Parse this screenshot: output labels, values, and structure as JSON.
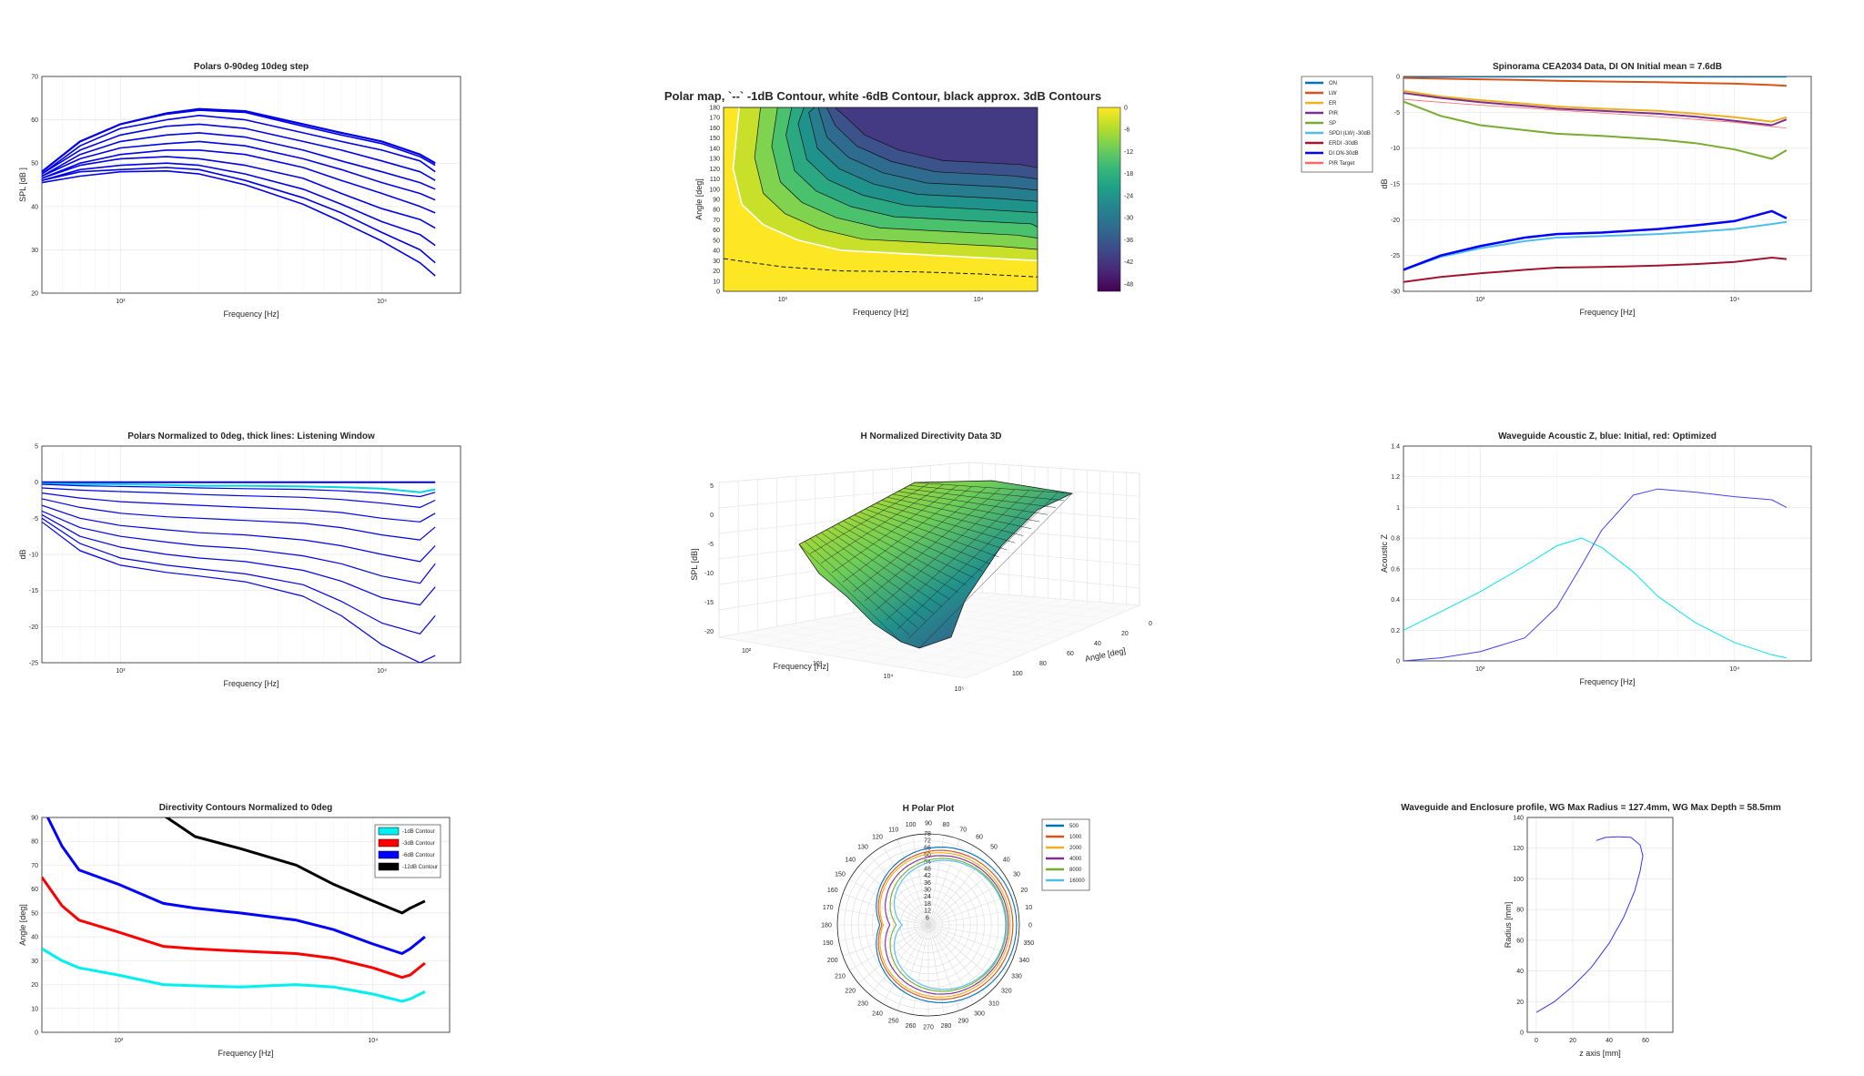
{
  "chart_data": [
    {
      "id": "polars",
      "type": "line",
      "title": "Polars 0-90deg 10deg step",
      "xlabel": "Frequency [Hz]",
      "ylabel": "SPL [dB ]",
      "xscale": "log",
      "xlim": [
        500,
        20000
      ],
      "ylim": [
        20,
        70
      ],
      "yticks": [
        20,
        30,
        40,
        50,
        60,
        70
      ],
      "xticks": [
        {
          "v": 1000,
          "label": "10³"
        },
        {
          "v": 10000,
          "label": "10⁴"
        }
      ],
      "grid": true,
      "color": "#0000e6",
      "x": [
        500,
        700,
        1000,
        1500,
        2000,
        3000,
        5000,
        7000,
        10000,
        14000,
        16000
      ],
      "series": [
        {
          "values": [
            48,
            55,
            59,
            61.5,
            62.5,
            62,
            59,
            57,
            55,
            52,
            50
          ]
        },
        {
          "values": [
            48,
            55,
            59,
            61.3,
            62.2,
            61.7,
            58.5,
            56.5,
            54.5,
            51.5,
            49.5
          ]
        },
        {
          "values": [
            47.5,
            54,
            58,
            60,
            61,
            60,
            57,
            55,
            53,
            50.5,
            48
          ]
        },
        {
          "values": [
            47.5,
            53,
            56.5,
            58.5,
            59,
            58,
            55,
            53,
            50.5,
            48,
            46
          ]
        },
        {
          "values": [
            47,
            52,
            55,
            56.5,
            57,
            56,
            53,
            50.5,
            48,
            45.5,
            44
          ]
        },
        {
          "values": [
            47,
            51,
            53.5,
            54.5,
            55,
            54,
            51,
            48.5,
            45.5,
            43,
            41.5
          ]
        },
        {
          "values": [
            46.5,
            50,
            52,
            53,
            53,
            52,
            49,
            46,
            43,
            40,
            38.5
          ]
        },
        {
          "values": [
            46.5,
            49.5,
            51,
            51.5,
            51,
            49.5,
            46.5,
            43,
            39.5,
            37,
            35
          ]
        },
        {
          "values": [
            46,
            48.5,
            49.5,
            50,
            49.5,
            47.5,
            44,
            40.5,
            36.5,
            33.5,
            31
          ]
        },
        {
          "values": [
            46,
            48,
            48.5,
            49,
            48.5,
            46,
            42,
            38.5,
            34,
            30,
            27
          ]
        },
        {
          "values": [
            45.5,
            47,
            48,
            48.2,
            47.5,
            45,
            40.5,
            36.5,
            32,
            27,
            24
          ]
        }
      ]
    },
    {
      "id": "polarmap",
      "type": "heatmap",
      "title": "Polar map, `--` -1dB Contour, white -6dB Contour, black approx. 3dB Contours",
      "xlabel": "Frequency [Hz]",
      "ylabel": "Angle [deg]",
      "xscale": "log",
      "xlim": [
        500,
        20000
      ],
      "ylim": [
        0,
        180
      ],
      "yticks": [
        0,
        10,
        20,
        30,
        40,
        50,
        60,
        70,
        80,
        90,
        100,
        110,
        120,
        130,
        140,
        150,
        160,
        170,
        180
      ],
      "xticks": [
        {
          "v": 1000,
          "label": "10³"
        },
        {
          "v": 10000,
          "label": "10⁴"
        }
      ],
      "colorbar": {
        "ticks": [
          0,
          -6,
          -12,
          -18,
          -24,
          -30,
          -36,
          -42,
          -48
        ],
        "range": [
          -50,
          0
        ]
      },
      "contour_minus1dB": [
        [
          500,
          32
        ],
        [
          700,
          28
        ],
        [
          1000,
          24
        ],
        [
          2000,
          20
        ],
        [
          5000,
          19
        ],
        [
          10000,
          17
        ],
        [
          20000,
          14
        ]
      ],
      "contour_minus6dB": [
        [
          600,
          180
        ],
        [
          560,
          120
        ],
        [
          620,
          85
        ],
        [
          800,
          65
        ],
        [
          1200,
          50
        ],
        [
          2000,
          40
        ],
        [
          5000,
          36
        ],
        [
          10000,
          33
        ],
        [
          20000,
          30
        ]
      ]
    },
    {
      "id": "spinorama",
      "type": "line",
      "title": "Spinorama CEA2034 Data, DI ON Initial mean = 7.6dB",
      "xlabel": "Frequency [Hz]",
      "ylabel": "dB",
      "xscale": "log",
      "xlim": [
        500,
        20000
      ],
      "ylim": [
        -30,
        0
      ],
      "yticks": [
        -30,
        -25,
        -20,
        -15,
        -10,
        -5,
        0
      ],
      "xticks": [
        {
          "v": 1000,
          "label": "10³"
        },
        {
          "v": 10000,
          "label": "10⁴"
        }
      ],
      "x": [
        500,
        700,
        1000,
        1500,
        2000,
        3000,
        5000,
        7000,
        10000,
        14000,
        16000
      ],
      "series": [
        {
          "name": "ON",
          "color": "#0072bd",
          "width": 2.2,
          "values": [
            0,
            0,
            0,
            0,
            0,
            0,
            0,
            0,
            0,
            0,
            0
          ]
        },
        {
          "name": "LW",
          "color": "#d95319",
          "width": 2,
          "values": [
            -0.2,
            -0.3,
            -0.4,
            -0.5,
            -0.6,
            -0.7,
            -0.8,
            -0.9,
            -1,
            -1.2,
            -1.3
          ]
        },
        {
          "name": "ER",
          "color": "#edb120",
          "width": 2,
          "values": [
            -2,
            -2.8,
            -3.3,
            -3.8,
            -4.2,
            -4.5,
            -4.8,
            -5.2,
            -5.7,
            -6.3,
            -5.7
          ]
        },
        {
          "name": "PIR",
          "color": "#7e2f8e",
          "width": 2,
          "values": [
            -2.3,
            -3,
            -3.6,
            -4.1,
            -4.5,
            -4.8,
            -5.2,
            -5.6,
            -6.2,
            -6.8,
            -6
          ]
        },
        {
          "name": "SP",
          "color": "#77ac30",
          "width": 2,
          "values": [
            -3.5,
            -5.5,
            -6.8,
            -7.5,
            -8,
            -8.3,
            -8.8,
            -9.3,
            -10.2,
            -11.5,
            -10.3
          ]
        },
        {
          "name": "SPDI (LW) -30dB",
          "color": "#4dbeee",
          "width": 2,
          "values": [
            -27,
            -25.2,
            -24,
            -23,
            -22.5,
            -22.3,
            -22,
            -21.7,
            -21.3,
            -20.6,
            -20.3
          ]
        },
        {
          "name": "ERDI -30dB",
          "color": "#a2142f",
          "width": 2,
          "values": [
            -28.7,
            -28,
            -27.5,
            -27,
            -26.7,
            -26.6,
            -26.4,
            -26.2,
            -25.9,
            -25.3,
            -25.5
          ]
        },
        {
          "name": "DI ON-30dB",
          "color": "#0000ff",
          "width": 2.5,
          "values": [
            -27,
            -25,
            -23.7,
            -22.5,
            -22,
            -21.8,
            -21.3,
            -20.8,
            -20.2,
            -18.8,
            -19.8
          ]
        },
        {
          "name": "PIR Target",
          "color": "#ff6666",
          "width": 0.8,
          "values": [
            -3.2,
            -3.6,
            -4,
            -4.4,
            -4.7,
            -5.1,
            -5.6,
            -6,
            -6.4,
            -7,
            -7.2
          ]
        }
      ]
    },
    {
      "id": "polarsnorm",
      "type": "line",
      "title": "Polars Normalized to 0deg, thick lines: Listening Window",
      "xlabel": "Frequency [Hz]",
      "ylabel": "dB",
      "xscale": "log",
      "xlim": [
        500,
        20000
      ],
      "ylim": [
        -25,
        5
      ],
      "yticks": [
        -25,
        -20,
        -15,
        -10,
        -5,
        0,
        5
      ],
      "xticks": [
        {
          "v": 1000,
          "label": "10³"
        },
        {
          "v": 10000,
          "label": "10⁴"
        }
      ],
      "x": [
        500,
        700,
        1000,
        1500,
        2000,
        3000,
        5000,
        7000,
        10000,
        14000,
        16000
      ],
      "series": [
        {
          "color": "#0000e6",
          "width": 2,
          "values": [
            0,
            0,
            0,
            0,
            0,
            0,
            0,
            0,
            0,
            0,
            0
          ]
        },
        {
          "color": "#00d8e0",
          "width": 2,
          "values": [
            -0.2,
            -0.3,
            -0.3,
            -0.4,
            -0.5,
            -0.5,
            -0.6,
            -0.7,
            -0.9,
            -1.4,
            -1
          ]
        },
        {
          "color": "#0000e6",
          "width": 1.2,
          "values": [
            -0.3,
            -0.5,
            -0.6,
            -0.7,
            -0.8,
            -0.9,
            -1,
            -1.2,
            -1.5,
            -2,
            -1.4
          ]
        },
        {
          "color": "#0000e6",
          "width": 1.2,
          "values": [
            -0.8,
            -1.1,
            -1.3,
            -1.5,
            -1.7,
            -1.9,
            -2.1,
            -2.4,
            -2.9,
            -3.5,
            -2.5
          ]
        },
        {
          "color": "#0000e6",
          "width": 1.2,
          "values": [
            -1.5,
            -2.2,
            -2.7,
            -3,
            -3.2,
            -3.5,
            -3.8,
            -4.2,
            -5,
            -5.5,
            -4.3
          ]
        },
        {
          "color": "#0000e6",
          "width": 1.2,
          "values": [
            -2.3,
            -3.5,
            -4.3,
            -4.8,
            -5,
            -5.3,
            -5.7,
            -6.3,
            -7.3,
            -8,
            -6.2
          ]
        },
        {
          "color": "#0000e6",
          "width": 1.2,
          "values": [
            -3.2,
            -5,
            -6,
            -6.6,
            -7,
            -7.3,
            -8,
            -8.8,
            -10,
            -11,
            -8.8
          ]
        },
        {
          "color": "#0000e6",
          "width": 1.2,
          "values": [
            -4,
            -6.3,
            -7.5,
            -8.3,
            -8.8,
            -9.2,
            -10.2,
            -11.3,
            -13,
            -14,
            -11.3
          ]
        },
        {
          "color": "#0000e6",
          "width": 1.2,
          "values": [
            -4.5,
            -7.5,
            -9,
            -10,
            -10.5,
            -11,
            -12.2,
            -13.7,
            -16,
            -17,
            -14.5
          ]
        },
        {
          "color": "#0000e6",
          "width": 1.2,
          "values": [
            -5,
            -8.5,
            -10.5,
            -11.5,
            -12,
            -12.7,
            -14.2,
            -16.5,
            -19.5,
            -21,
            -18.5
          ]
        },
        {
          "color": "#0000e6",
          "width": 1.2,
          "values": [
            -5.5,
            -9.5,
            -11.5,
            -12.5,
            -13,
            -13.8,
            -15.8,
            -18.5,
            -22.5,
            -25,
            -24
          ]
        }
      ]
    },
    {
      "id": "directivity3d",
      "type": "surface",
      "title": "H Normalized Directivity Data 3D",
      "xlabel": "Frequency [Hz]",
      "ylabel": "Angle [deg]",
      "zlabel": "SPL [dB]",
      "zticks": [
        5,
        0,
        -5,
        -10,
        -15,
        -20
      ],
      "angle_ticks": [
        0,
        20,
        40,
        60,
        80,
        100
      ],
      "freq_ticks": [
        "10²",
        "10³",
        "10⁴",
        "10⁵"
      ]
    },
    {
      "id": "acousticz",
      "type": "line",
      "title": "Waveguide Acoustic Z, blue: Initial, red: Optimized",
      "xlabel": "Frequency [Hz]",
      "ylabel": "Acoustic Z",
      "xscale": "log",
      "xlim": [
        500,
        20000
      ],
      "ylim": [
        0,
        1.4
      ],
      "yticks": [
        0,
        0.2,
        0.4,
        0.6,
        0.8,
        1,
        1.2,
        1.4
      ],
      "xticks": [
        {
          "v": 1000,
          "label": "10³"
        },
        {
          "v": 10000,
          "label": "10⁴"
        }
      ],
      "x": [
        500,
        700,
        1000,
        1500,
        2000,
        2500,
        3000,
        4000,
        5000,
        7000,
        10000,
        14000,
        16000
      ],
      "series": [
        {
          "color": "#00e5ee",
          "values": [
            0.2,
            0.32,
            0.45,
            0.62,
            0.75,
            0.8,
            0.74,
            0.58,
            0.42,
            0.25,
            0.12,
            0.04,
            0.02
          ]
        },
        {
          "color": "#4040ff",
          "values": [
            0.0,
            0.02,
            0.06,
            0.15,
            0.35,
            0.62,
            0.85,
            1.08,
            1.12,
            1.1,
            1.07,
            1.05,
            1.0
          ]
        }
      ]
    },
    {
      "id": "contours",
      "type": "line",
      "title": "Directivity Contours Normalized to 0deg",
      "xlabel": "Frequency [Hz]",
      "ylabel": "Angle [deg]",
      "xscale": "log",
      "xlim": [
        500,
        20000
      ],
      "ylim": [
        0,
        90
      ],
      "yticks": [
        0,
        10,
        20,
        30,
        40,
        50,
        60,
        70,
        80,
        90
      ],
      "xticks": [
        {
          "v": 1000,
          "label": "10³"
        },
        {
          "v": 10000,
          "label": "10⁴"
        }
      ],
      "x": [
        500,
        600,
        700,
        1000,
        1500,
        2000,
        3000,
        5000,
        7000,
        10000,
        13000,
        14000,
        16000
      ],
      "series": [
        {
          "name": "-1dB Contour",
          "color": "#00f0f0",
          "values": [
            35,
            30,
            27,
            24,
            20,
            19.5,
            19,
            20,
            19,
            16,
            13,
            14,
            17
          ]
        },
        {
          "name": "-3dB Contour",
          "color": "#ff0000",
          "values": [
            65,
            53,
            47,
            42,
            36,
            35,
            34,
            33,
            31,
            27,
            23,
            24,
            29
          ]
        },
        {
          "name": "-6dB Contour",
          "color": "#0000ff",
          "values": [
            105,
            78,
            68,
            62,
            54,
            52,
            50,
            47,
            43,
            37,
            33,
            35,
            40
          ]
        },
        {
          "name": "-12dB Contour",
          "color": "#000000",
          "values": [
            null,
            null,
            null,
            null,
            91,
            82,
            77,
            70,
            62,
            55,
            50,
            52,
            55
          ]
        }
      ]
    },
    {
      "id": "hpolar",
      "type": "polar",
      "title": "H Polar Plot",
      "angle_labels": [
        0,
        10,
        20,
        30,
        40,
        50,
        60,
        70,
        80,
        90,
        100,
        110,
        120,
        130,
        140,
        150,
        160,
        170,
        180,
        190,
        200,
        210,
        220,
        230,
        240,
        250,
        260,
        270,
        280,
        290,
        300,
        310,
        320,
        330,
        340,
        350
      ],
      "radial_labels": [
        6,
        12,
        18,
        24,
        30,
        36,
        42,
        48,
        54,
        60,
        66,
        72,
        78
      ],
      "series": [
        {
          "name": "500",
          "color": "#0072bd",
          "rlevel": 0.97
        },
        {
          "name": "1000",
          "color": "#d95319",
          "rlevel": 0.93
        },
        {
          "name": "2000",
          "color": "#edb120",
          "rlevel": 0.9
        },
        {
          "name": "4000",
          "color": "#7e2f8e",
          "rlevel": 0.88
        },
        {
          "name": "8000",
          "color": "#77ac30",
          "rlevel": 0.86
        },
        {
          "name": "16000",
          "color": "#4dbeee",
          "rlevel": 0.85
        }
      ]
    },
    {
      "id": "profile",
      "type": "line",
      "title": "Waveguide and Enclosure profile, WG Max Radius = 127.4mm, WG Max Depth = 58.5mm",
      "xlabel": "z axis [mm]",
      "ylabel": "Radius [mm]",
      "xlim": [
        -5,
        75
      ],
      "ylim": [
        0,
        140
      ],
      "xticks": [
        0,
        20,
        40,
        60
      ],
      "yticks": [
        0,
        20,
        40,
        60,
        80,
        100,
        120,
        140
      ],
      "x": [
        0,
        10,
        20,
        30,
        40,
        48,
        54,
        57,
        58.5,
        57,
        52,
        45,
        38,
        33
      ],
      "series": [
        {
          "color": "#3333ff",
          "values": [
            13,
            20,
            30,
            42,
            58,
            75,
            92,
            105,
            115,
            122,
            127,
            127.4,
            127,
            125
          ]
        }
      ]
    }
  ]
}
